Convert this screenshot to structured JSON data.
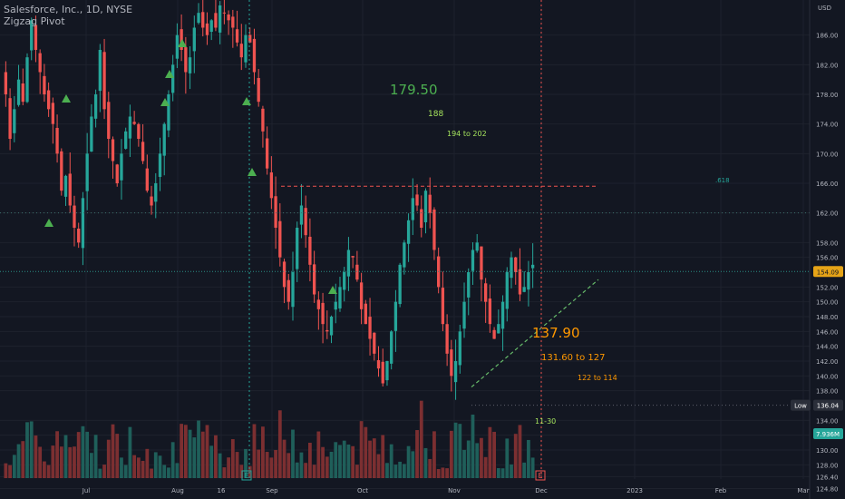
{
  "header": {
    "symbol_line": "Salesforce, Inc., 1D, NYSE",
    "indicator": "Zigzag Pivot"
  },
  "colors": {
    "bg": "#131722",
    "up": "#26a69a",
    "down": "#ef5350",
    "grid": "#1e222d",
    "text": "#b2b5be",
    "green": "#4caf50",
    "orange": "#ff9800",
    "lime": "#a5e35d"
  },
  "chart_data": {
    "type": "candlestick",
    "currency": "USD",
    "ylim": [
      124,
      190
    ],
    "y_ticks": [
      "186.00",
      "182.00",
      "178.00",
      "174.00",
      "170.00",
      "166.00",
      "162.00",
      "158.00",
      "156.00",
      "152.00",
      "150.00",
      "148.00",
      "146.00",
      "144.00",
      "142.00",
      "140.00",
      "138.00",
      "134.00",
      "132.00",
      "130.00",
      "128.00",
      "126.40",
      "124.80"
    ],
    "x_ticks": [
      "Jul",
      "Aug",
      "16",
      "Sep",
      "Oct",
      "Nov",
      "Dec",
      "2023",
      "Feb",
      "Mar"
    ],
    "price_tags": [
      {
        "label": "Price",
        "value": "154.09"
      },
      {
        "label": "Low",
        "value": "136.04"
      },
      {
        "label": "Vol",
        "value": "7.936M"
      }
    ],
    "annotations": [
      {
        "text": "179.50",
        "color": "#4caf50",
        "size": "large"
      },
      {
        "text": "188",
        "color": "#a5e35d",
        "size": "small"
      },
      {
        "text": "194 to 202",
        "color": "#a5e35d",
        "size": "small"
      },
      {
        "text": ".618",
        "color": "#26a69a",
        "size": "small"
      },
      {
        "text": "137.90",
        "color": "#ff9800",
        "size": "large"
      },
      {
        "text": "131.60 to 127",
        "color": "#ff9800",
        "size": "small"
      },
      {
        "text": "122 to 114",
        "color": "#ff9800",
        "size": "small"
      },
      {
        "text": "11-30",
        "color": "#a5e35d",
        "size": "small"
      }
    ],
    "levels": {
      "resistance": 165.6,
      "fib_618": 162.0,
      "low": 136.04
    },
    "earnings_markers": [
      "E",
      "E"
    ],
    "closes": [
      178,
      172,
      176,
      180,
      177,
      183,
      188,
      184,
      181,
      178,
      176,
      174,
      170,
      165,
      167,
      163,
      160,
      158,
      164,
      170,
      175,
      178,
      184,
      176,
      172,
      169,
      166,
      170,
      173,
      175,
      174,
      172,
      169,
      165,
      163,
      166,
      170,
      174,
      178,
      182,
      186,
      184,
      181,
      183,
      187,
      189,
      187,
      186,
      188,
      187,
      190,
      189,
      188,
      187,
      185,
      183,
      186,
      185,
      181,
      177,
      173,
      168,
      164,
      160,
      156,
      152,
      150,
      154,
      160,
      163,
      159,
      155,
      151,
      149,
      147,
      146,
      148,
      150,
      152,
      154,
      157,
      156,
      153,
      149,
      147,
      145,
      143,
      141,
      139,
      142,
      146,
      150,
      155,
      158,
      161,
      164,
      163,
      160,
      165,
      162,
      157,
      152,
      147,
      143,
      140,
      142,
      146,
      150,
      154,
      157,
      158,
      153,
      150,
      147,
      145,
      147,
      150,
      154,
      156,
      154,
      151,
      152,
      154,
      155
    ]
  }
}
